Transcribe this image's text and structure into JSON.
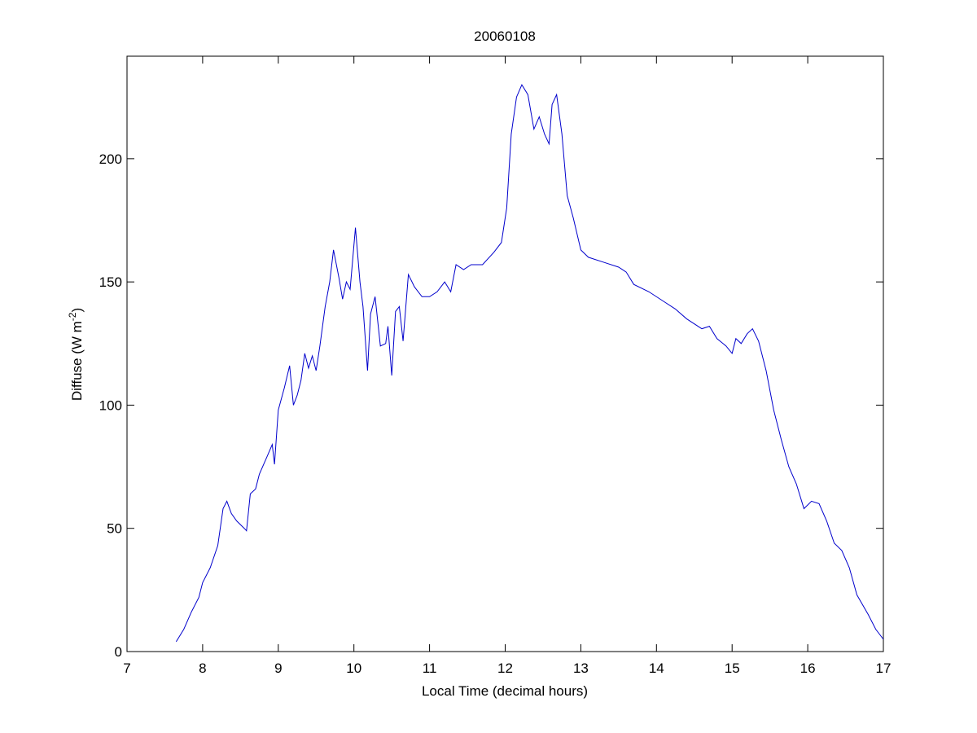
{
  "chart_data": {
    "type": "line",
    "title": "20060108",
    "xlabel": "Local Time (decimal hours)",
    "ylabel": {
      "text": "Diffuse (W m",
      "superscript": "-2",
      "suffix": ")"
    },
    "x": [
      7.65,
      7.75,
      7.85,
      7.95,
      8.0,
      8.1,
      8.2,
      8.27,
      8.32,
      8.38,
      8.45,
      8.55,
      8.58,
      8.63,
      8.7,
      8.75,
      8.85,
      8.92,
      8.95,
      9.0,
      9.08,
      9.15,
      9.2,
      9.25,
      9.3,
      9.35,
      9.4,
      9.45,
      9.5,
      9.55,
      9.62,
      9.68,
      9.73,
      9.8,
      9.85,
      9.9,
      9.95,
      10.02,
      10.08,
      10.12,
      10.18,
      10.22,
      10.28,
      10.35,
      10.42,
      10.45,
      10.5,
      10.55,
      10.6,
      10.65,
      10.72,
      10.8,
      10.9,
      11.0,
      11.1,
      11.2,
      11.28,
      11.35,
      11.45,
      11.55,
      11.7,
      11.85,
      11.95,
      12.02,
      12.08,
      12.15,
      12.22,
      12.3,
      12.38,
      12.45,
      12.52,
      12.58,
      12.62,
      12.68,
      12.75,
      12.82,
      12.9,
      13.0,
      13.1,
      13.3,
      13.5,
      13.6,
      13.7,
      13.9,
      14.1,
      14.25,
      14.4,
      14.6,
      14.7,
      14.8,
      14.92,
      15.0,
      15.05,
      15.12,
      15.2,
      15.27,
      15.35,
      15.45,
      15.55,
      15.65,
      15.75,
      15.85,
      15.95,
      16.05,
      16.15,
      16.25,
      16.35,
      16.45,
      16.55,
      16.65,
      16.8,
      16.9,
      17.0
    ],
    "series": [
      {
        "color": "#0000cc",
        "values": [
          4,
          9,
          16,
          22,
          28,
          34,
          43,
          58,
          61,
          56,
          53,
          50,
          49,
          64,
          66,
          72,
          79,
          84,
          76,
          98,
          107,
          116,
          100,
          104,
          110,
          121,
          115,
          120,
          114,
          124,
          140,
          150,
          163,
          152,
          143,
          150,
          147,
          172,
          150,
          140,
          114,
          137,
          144,
          124,
          125,
          132,
          112,
          138,
          140,
          126,
          153,
          148,
          144,
          144,
          146,
          150,
          146,
          157,
          155,
          157,
          157,
          162,
          166,
          180,
          210,
          225,
          230,
          226,
          212,
          217,
          210,
          206,
          222,
          226,
          210,
          185,
          176,
          163,
          160,
          158,
          156,
          154,
          149,
          146,
          142,
          139,
          135,
          131,
          132,
          127,
          124,
          121,
          127,
          125,
          129,
          131,
          126,
          114,
          98,
          86,
          75,
          68,
          58,
          61,
          60,
          53,
          44,
          41,
          34,
          23,
          15,
          9,
          5
        ]
      }
    ],
    "xlim": [
      7,
      17
    ],
    "xticks": [
      7,
      8,
      9,
      10,
      11,
      12,
      13,
      14,
      15,
      16,
      17
    ],
    "ylim": [
      0,
      241.6
    ],
    "yticks": [
      0,
      50,
      100,
      150,
      200
    ],
    "grid": false
  }
}
